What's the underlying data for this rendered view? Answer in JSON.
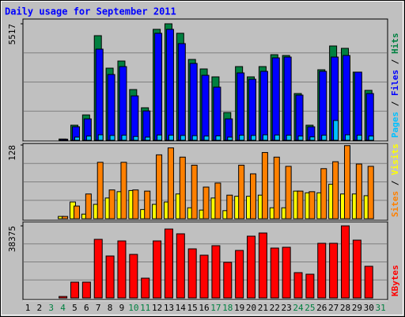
{
  "chart_data": [
    {
      "type": "bar",
      "title": "Daily usage for September 2011",
      "categories": [
        "1",
        "2",
        "3",
        "4",
        "5",
        "6",
        "7",
        "8",
        "9",
        "10",
        "11",
        "12",
        "13",
        "14",
        "15",
        "16",
        "17",
        "18",
        "19",
        "20",
        "21",
        "22",
        "23",
        "24",
        "25",
        "26",
        "27",
        "28",
        "29",
        "30",
        "31"
      ],
      "highlight_categories": [
        "3",
        "4",
        "10",
        "11",
        "17",
        "18",
        "24",
        "25",
        "31"
      ],
      "highlight_color": "#008040",
      "label_separator": "/",
      "ylim": [
        0,
        5517
      ],
      "yticks": [
        5517
      ],
      "series": [
        {
          "name": "Hits",
          "color": "#008040",
          "values": [
            0,
            0,
            0,
            60,
            713,
            1200,
            4954,
            3415,
            3753,
            2402,
            1539,
            5254,
            5517,
            5067,
            3828,
            3378,
            3003,
            1314,
            3490,
            3003,
            3490,
            4053,
            4016,
            2214,
            713,
            3340,
            4466,
            4354,
            3228,
            2364,
            0
          ]
        },
        {
          "name": "Files",
          "color": "#0000ff",
          "values": [
            0,
            0,
            0,
            50,
            640,
            1013,
            4316,
            3115,
            3490,
            2102,
            1389,
            5067,
            5254,
            4579,
            3640,
            3077,
            2515,
            1013,
            3190,
            2890,
            3265,
            3903,
            3941,
            2139,
            638,
            3265,
            3941,
            4016,
            3228,
            2214,
            0
          ]
        },
        {
          "name": "Pages",
          "color": "#00c0ff",
          "values": [
            0,
            0,
            0,
            10,
            150,
            200,
            260,
            230,
            240,
            180,
            150,
            250,
            240,
            230,
            220,
            200,
            210,
            150,
            240,
            230,
            260,
            250,
            240,
            200,
            160,
            240,
            938,
            260,
            240,
            200,
            0
          ]
        }
      ]
    },
    {
      "type": "bar",
      "ylim": [
        0,
        128
      ],
      "yticks": [
        128
      ],
      "series": [
        {
          "name": "Visits",
          "color": "#ffff00",
          "values": [
            0,
            0,
            0,
            4,
            29,
            8,
            25,
            36,
            47,
            49,
            16,
            25,
            29,
            43,
            19,
            15,
            36,
            14,
            39,
            39,
            41,
            19,
            19,
            48,
            45,
            45,
            60,
            43,
            43,
            40,
            0
          ]
        },
        {
          "name": "Sites",
          "color": "#ff8000",
          "values": [
            0,
            0,
            0,
            4,
            22,
            43,
            98,
            50,
            98,
            50,
            48,
            111,
            123,
            107,
            93,
            55,
            62,
            41,
            93,
            78,
            115,
            107,
            91,
            48,
            47,
            87,
            99,
            127,
            95,
            91,
            0
          ]
        }
      ]
    },
    {
      "type": "bar",
      "ylim": [
        0,
        38375
      ],
      "yticks": [
        38375
      ],
      "series": [
        {
          "name": "KBytes",
          "color": "#ff0000",
          "values": [
            0,
            0,
            0,
            800,
            8434,
            8434,
            31206,
            22350,
            30362,
            23194,
            10543,
            30362,
            36688,
            34157,
            26146,
            22772,
            27833,
            18977,
            25303,
            32894,
            34580,
            26568,
            26990,
            13495,
            12652,
            29097,
            29097,
            38375,
            30784,
            16868,
            0
          ]
        }
      ]
    }
  ]
}
